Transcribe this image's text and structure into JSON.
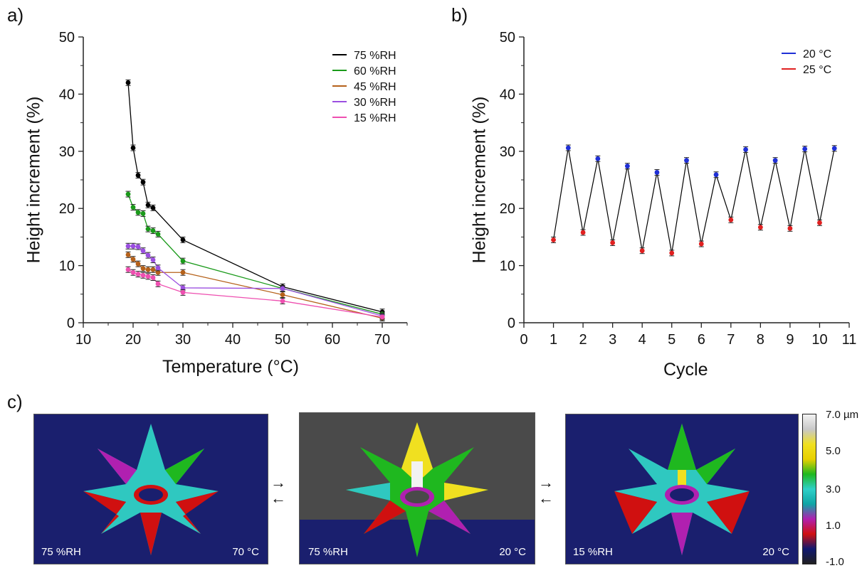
{
  "panel_labels": [
    "a)",
    "b)",
    "c)"
  ],
  "chart_data": [
    {
      "type": "line",
      "panel": "a)",
      "xlabel": "Temperature (°C)",
      "ylabel": "Height increment (%)",
      "xlim": [
        10,
        75
      ],
      "ylim": [
        0,
        50
      ],
      "xticks": [
        10,
        20,
        30,
        40,
        50,
        60,
        70
      ],
      "yticks": [
        0,
        10,
        20,
        30,
        40,
        50
      ],
      "legend_position": "top-right",
      "series": [
        {
          "name": "75 %RH",
          "color": "#000000",
          "x": [
            19,
            20,
            21,
            22,
            23,
            24,
            30,
            50,
            70
          ],
          "y": [
            42.0,
            30.6,
            25.8,
            24.6,
            20.6,
            20.1,
            14.5,
            6.3,
            1.9
          ]
        },
        {
          "name": "60 %RH",
          "color": "#1a9a1a",
          "x": [
            19,
            20,
            21,
            22,
            23,
            24,
            25,
            30,
            50,
            70
          ],
          "y": [
            22.5,
            20.2,
            19.3,
            19.1,
            16.4,
            16.1,
            15.5,
            10.8,
            6.0,
            1.5
          ]
        },
        {
          "name": "45 %RH",
          "color": "#b5611a",
          "x": [
            19,
            20,
            21,
            22,
            23,
            24,
            25,
            30,
            50,
            70
          ],
          "y": [
            11.9,
            11.1,
            10.3,
            9.5,
            9.3,
            9.3,
            8.8,
            8.8,
            4.9,
            0.8
          ]
        },
        {
          "name": "30 %RH",
          "color": "#9b4fe0",
          "x": [
            19,
            20,
            21,
            22,
            23,
            24,
            25,
            30,
            50,
            70
          ],
          "y": [
            13.4,
            13.4,
            13.3,
            12.6,
            11.8,
            11.0,
            9.6,
            6.1,
            6.0,
            1.2
          ]
        },
        {
          "name": "15 %RH",
          "color": "#ee4fb0",
          "x": [
            19,
            20,
            21,
            22,
            23,
            24,
            25,
            30,
            50,
            70
          ],
          "y": [
            9.3,
            8.8,
            8.5,
            8.3,
            8.1,
            7.9,
            6.8,
            5.3,
            3.8,
            1.0
          ]
        }
      ]
    },
    {
      "type": "line",
      "panel": "b)",
      "xlabel": "Cycle",
      "ylabel": "Height increment (%)",
      "xlim": [
        0,
        11
      ],
      "ylim": [
        0,
        50
      ],
      "xticks": [
        0,
        1,
        2,
        3,
        4,
        5,
        6,
        7,
        8,
        9,
        10,
        11
      ],
      "yticks": [
        0,
        10,
        20,
        30,
        40,
        50
      ],
      "legend_position": "top-right",
      "line_color": "#000000",
      "series": [
        {
          "name": "20 °C",
          "color": "#1f2fd6",
          "x": [
            1.5,
            2.5,
            3.5,
            4.5,
            5.5,
            6.5,
            7.5,
            8.5,
            9.5,
            10.5
          ],
          "y": [
            30.6,
            28.7,
            27.4,
            26.3,
            28.4,
            25.9,
            30.3,
            28.4,
            30.4,
            30.5
          ]
        },
        {
          "name": "25 °C",
          "color": "#e02020",
          "x": [
            1,
            2,
            3,
            4,
            5,
            6,
            7,
            8,
            9,
            10
          ],
          "y": [
            14.5,
            15.8,
            14.0,
            12.6,
            12.2,
            13.8,
            18.0,
            16.7,
            16.5,
            17.5
          ]
        }
      ]
    }
  ],
  "images": [
    {
      "left_text": "75 %RH",
      "right_text": "70 °C",
      "background": "#1a1f6e"
    },
    {
      "left_text": "75 %RH",
      "right_text": "20 °C",
      "background": "#4a4a4a"
    },
    {
      "left_text": "15 %RH",
      "right_text": "20 °C",
      "background": "#1a1f6e"
    }
  ],
  "arrows": [
    "→",
    "←",
    "→",
    "←"
  ],
  "color_scale": {
    "labels": [
      "7.0 µm",
      "5.0",
      "3.0",
      "1.0",
      "-1.0"
    ],
    "colors": [
      "#f2f2f2",
      "#c8c8c8",
      "#f0e020",
      "#e8d000",
      "#1fb81f",
      "#2fd0c8",
      "#0fa5a5",
      "#b020b0",
      "#d01010",
      "#101870",
      "#202020"
    ]
  }
}
